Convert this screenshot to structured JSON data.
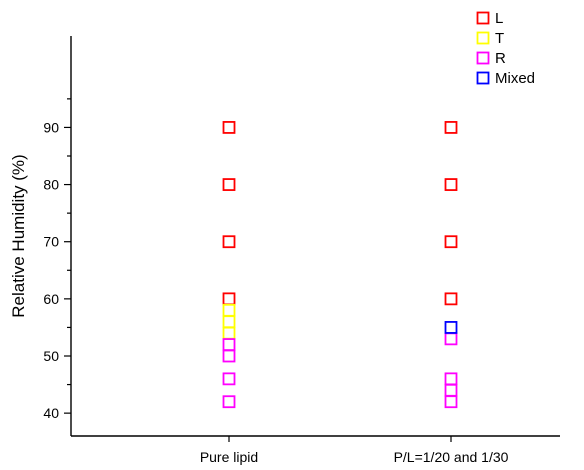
{
  "chart_data": {
    "type": "scatter",
    "ylabel": "Relative Humidity (%)",
    "xlabel": "",
    "categories": [
      "Pure lipid",
      "P/L=1/20 and 1/30"
    ],
    "ylim": [
      36,
      106
    ],
    "yticks": [
      40,
      50,
      60,
      70,
      80,
      90
    ],
    "grid": false,
    "legend_position": "top-right",
    "series": [
      {
        "name": "L",
        "color": "#ff0000",
        "points": [
          {
            "category": "Pure lipid",
            "y": 90
          },
          {
            "category": "Pure lipid",
            "y": 80
          },
          {
            "category": "Pure lipid",
            "y": 70
          },
          {
            "category": "Pure lipid",
            "y": 60
          },
          {
            "category": "P/L=1/20 and 1/30",
            "y": 90
          },
          {
            "category": "P/L=1/20 and 1/30",
            "y": 80
          },
          {
            "category": "P/L=1/20 and 1/30",
            "y": 70
          },
          {
            "category": "P/L=1/20 and 1/30",
            "y": 60
          }
        ]
      },
      {
        "name": "T",
        "color": "#ffff00",
        "points": [
          {
            "category": "Pure lipid",
            "y": 58
          },
          {
            "category": "Pure lipid",
            "y": 56
          },
          {
            "category": "Pure lipid",
            "y": 54
          }
        ]
      },
      {
        "name": "R",
        "color": "#ff00ff",
        "points": [
          {
            "category": "Pure lipid",
            "y": 52
          },
          {
            "category": "Pure lipid",
            "y": 50
          },
          {
            "category": "Pure lipid",
            "y": 46
          },
          {
            "category": "Pure lipid",
            "y": 42
          },
          {
            "category": "P/L=1/20 and 1/30",
            "y": 53
          },
          {
            "category": "P/L=1/20 and 1/30",
            "y": 46
          },
          {
            "category": "P/L=1/20 and 1/30",
            "y": 44
          },
          {
            "category": "P/L=1/20 and 1/30",
            "y": 42
          }
        ]
      },
      {
        "name": "Mixed",
        "color": "#0000ff",
        "points": [
          {
            "category": "P/L=1/20 and 1/30",
            "y": 55
          }
        ]
      }
    ]
  }
}
